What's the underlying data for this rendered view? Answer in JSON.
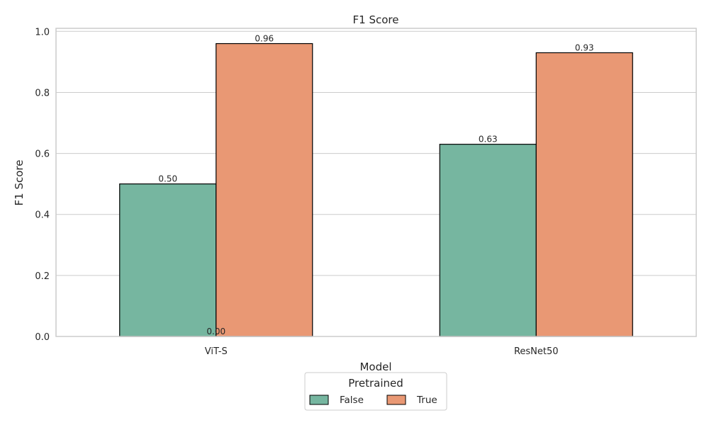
{
  "chart_data": {
    "type": "bar",
    "title": "F1 Score",
    "xlabel": "Model",
    "ylabel": "F1 Score",
    "categories": [
      "ViT-S",
      "ResNet50"
    ],
    "series": [
      {
        "name": "False",
        "values": [
          0.5,
          0.63
        ],
        "labels": [
          "0.50",
          "0.63"
        ],
        "color": "#76b6a0"
      },
      {
        "name": "True",
        "values": [
          0.96,
          0.93
        ],
        "labels": [
          "0.96",
          "0.93"
        ],
        "color": "#e99874"
      }
    ],
    "extra_labels": [
      {
        "text": "0.00",
        "category_index": 0,
        "value": 0.0
      }
    ],
    "ylim": [
      0,
      1.01
    ],
    "yticks": [
      0.0,
      0.2,
      0.4,
      0.6,
      0.8,
      1.0
    ],
    "ytick_labels": [
      "0.0",
      "0.2",
      "0.4",
      "0.6",
      "0.8",
      "1.0"
    ],
    "grid": true,
    "legend": {
      "title": "Pretrained",
      "placement": "bottom-center"
    },
    "bar_edge_color": "#000000",
    "grid_color": "#cccccc"
  }
}
